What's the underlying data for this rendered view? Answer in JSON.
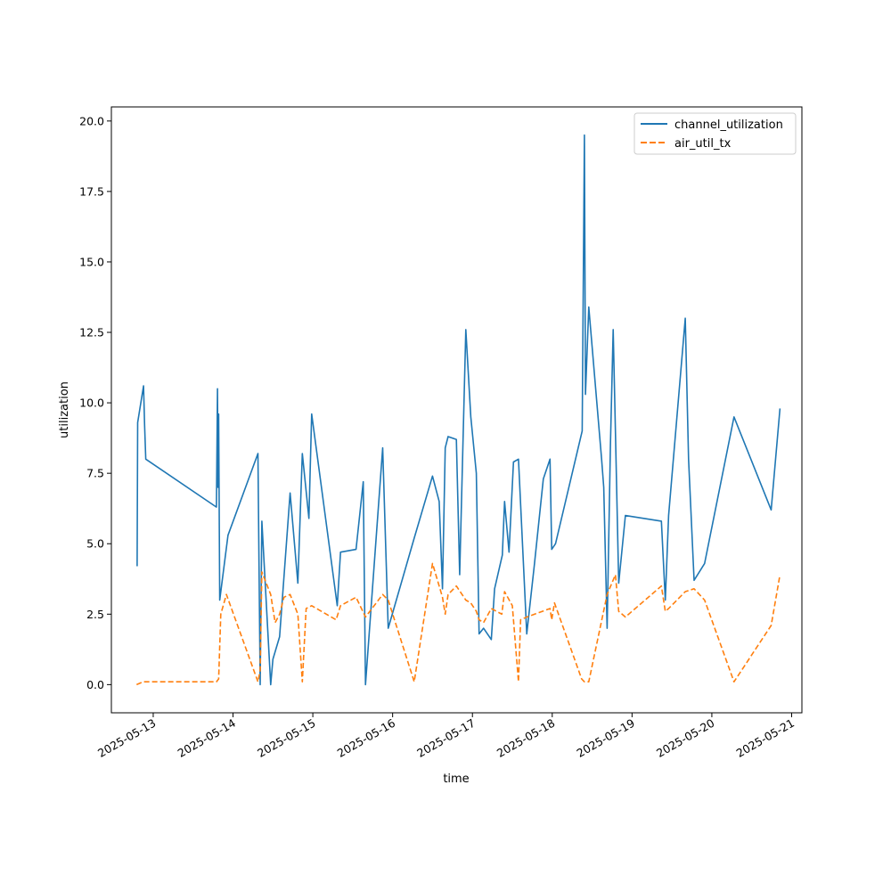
{
  "chart_data": {
    "type": "line",
    "title": "",
    "xlabel": "time",
    "ylabel": "utilization",
    "xlim": [
      "2025-05-12T11:25",
      "2025-05-21T03:05"
    ],
    "ylim": [
      -1.0,
      20.5
    ],
    "x_ticks": [
      "2025-05-13",
      "2025-05-14",
      "2025-05-15",
      "2025-05-16",
      "2025-05-17",
      "2025-05-18",
      "2025-05-19",
      "2025-05-20",
      "2025-05-21"
    ],
    "y_ticks": [
      "0.0",
      "2.5",
      "5.0",
      "7.5",
      "10.0",
      "12.5",
      "15.0",
      "17.5",
      "20.0"
    ],
    "grid": false,
    "legend": "top-right",
    "series": [
      {
        "name": "channel_utilization",
        "color": "#1f77b4",
        "style": "solid",
        "points": [
          [
            "2025-05-12T19:10",
            4.2
          ],
          [
            "2025-05-12T19:20",
            9.3
          ],
          [
            "2025-05-12T21:05",
            10.6
          ],
          [
            "2025-05-12T21:25",
            9.2
          ],
          [
            "2025-05-12T21:45",
            8.0
          ],
          [
            "2025-05-13T19:00",
            6.3
          ],
          [
            "2025-05-13T19:20",
            10.5
          ],
          [
            "2025-05-13T19:30",
            7.0
          ],
          [
            "2025-05-13T19:40",
            9.6
          ],
          [
            "2025-05-13T20:00",
            3.0
          ],
          [
            "2025-05-13T22:30",
            5.3
          ],
          [
            "2025-05-14T07:30",
            8.2
          ],
          [
            "2025-05-14T08:10",
            0.0
          ],
          [
            "2025-05-14T08:40",
            5.8
          ],
          [
            "2025-05-14T11:20",
            0.0
          ],
          [
            "2025-05-14T12:00",
            0.9
          ],
          [
            "2025-05-14T14:00",
            1.7
          ],
          [
            "2025-05-14T17:10",
            6.8
          ],
          [
            "2025-05-14T19:30",
            3.6
          ],
          [
            "2025-05-14T20:50",
            8.2
          ],
          [
            "2025-05-14T22:50",
            5.9
          ],
          [
            "2025-05-14T23:40",
            9.6
          ],
          [
            "2025-05-15T07:20",
            2.8
          ],
          [
            "2025-05-15T08:20",
            4.7
          ],
          [
            "2025-05-15T13:00",
            4.8
          ],
          [
            "2025-05-15T15:10",
            7.2
          ],
          [
            "2025-05-15T15:50",
            0.0
          ],
          [
            "2025-05-15T21:00",
            8.4
          ],
          [
            "2025-05-15T22:40",
            2.0
          ],
          [
            "2025-05-16T06:30",
            5.2
          ],
          [
            "2025-05-16T12:00",
            7.4
          ],
          [
            "2025-05-16T14:00",
            6.5
          ],
          [
            "2025-05-16T15:00",
            3.4
          ],
          [
            "2025-05-16T15:50",
            8.4
          ],
          [
            "2025-05-16T16:40",
            8.8
          ],
          [
            "2025-05-16T19:10",
            8.7
          ],
          [
            "2025-05-16T20:10",
            3.9
          ],
          [
            "2025-05-16T22:00",
            12.6
          ],
          [
            "2025-05-16T23:30",
            9.5
          ],
          [
            "2025-05-17T01:10",
            7.5
          ],
          [
            "2025-05-17T02:00",
            1.8
          ],
          [
            "2025-05-17T03:20",
            2.0
          ],
          [
            "2025-05-17T05:40",
            1.6
          ],
          [
            "2025-05-17T06:40",
            3.4
          ],
          [
            "2025-05-17T09:00",
            4.6
          ],
          [
            "2025-05-17T09:40",
            6.5
          ],
          [
            "2025-05-17T11:00",
            4.7
          ],
          [
            "2025-05-17T12:20",
            7.9
          ],
          [
            "2025-05-17T13:50",
            8.0
          ],
          [
            "2025-05-17T16:20",
            1.8
          ],
          [
            "2025-05-17T18:40",
            4.3
          ],
          [
            "2025-05-17T21:20",
            7.3
          ],
          [
            "2025-05-17T23:20",
            8.0
          ],
          [
            "2025-05-17T23:50",
            4.8
          ],
          [
            "2025-05-18T01:00",
            5.0
          ],
          [
            "2025-05-18T09:00",
            9.0
          ],
          [
            "2025-05-18T09:40",
            19.5
          ],
          [
            "2025-05-18T10:00",
            10.3
          ],
          [
            "2025-05-18T11:00",
            13.4
          ],
          [
            "2025-05-18T14:50",
            8.0
          ],
          [
            "2025-05-18T15:30",
            7.0
          ],
          [
            "2025-05-18T16:30",
            2.0
          ],
          [
            "2025-05-18T17:30",
            8.5
          ],
          [
            "2025-05-18T18:20",
            12.6
          ],
          [
            "2025-05-18T19:00",
            9.0
          ],
          [
            "2025-05-18T20:00",
            3.6
          ],
          [
            "2025-05-18T22:00",
            6.0
          ],
          [
            "2025-05-19T08:50",
            5.8
          ],
          [
            "2025-05-19T10:00",
            3.0
          ],
          [
            "2025-05-19T11:00",
            6.0
          ],
          [
            "2025-05-19T16:00",
            13.0
          ],
          [
            "2025-05-19T17:00",
            8.0
          ],
          [
            "2025-05-19T18:40",
            3.7
          ],
          [
            "2025-05-19T21:50",
            4.3
          ],
          [
            "2025-05-20T06:40",
            9.5
          ],
          [
            "2025-05-20T17:50",
            6.2
          ],
          [
            "2025-05-20T20:30",
            9.8
          ]
        ]
      },
      {
        "name": "air_util_tx",
        "color": "#ff7f0e",
        "style": "dashed",
        "points": [
          [
            "2025-05-12T19:00",
            0.0
          ],
          [
            "2025-05-12T21:00",
            0.1
          ],
          [
            "2025-05-13T19:00",
            0.1
          ],
          [
            "2025-05-13T19:40",
            0.2
          ],
          [
            "2025-05-13T20:20",
            2.5
          ],
          [
            "2025-05-13T22:00",
            3.2
          ],
          [
            "2025-05-14T07:30",
            0.1
          ],
          [
            "2025-05-14T08:10",
            0.5
          ],
          [
            "2025-05-14T08:40",
            4.0
          ],
          [
            "2025-05-14T11:20",
            3.2
          ],
          [
            "2025-05-14T12:40",
            2.2
          ],
          [
            "2025-05-14T14:00",
            2.5
          ],
          [
            "2025-05-14T15:20",
            3.1
          ],
          [
            "2025-05-14T17:10",
            3.2
          ],
          [
            "2025-05-14T19:30",
            2.5
          ],
          [
            "2025-05-14T20:50",
            0.1
          ],
          [
            "2025-05-14T22:00",
            2.7
          ],
          [
            "2025-05-14T23:40",
            2.8
          ],
          [
            "2025-05-15T07:00",
            2.3
          ],
          [
            "2025-05-15T08:20",
            2.8
          ],
          [
            "2025-05-15T13:00",
            3.1
          ],
          [
            "2025-05-15T15:50",
            2.4
          ],
          [
            "2025-05-15T21:00",
            3.2
          ],
          [
            "2025-05-15T22:40",
            3.0
          ],
          [
            "2025-05-16T06:30",
            0.1
          ],
          [
            "2025-05-16T12:00",
            4.3
          ],
          [
            "2025-05-16T14:00",
            3.5
          ],
          [
            "2025-05-16T15:00",
            3.1
          ],
          [
            "2025-05-16T15:50",
            2.5
          ],
          [
            "2025-05-16T16:40",
            3.2
          ],
          [
            "2025-05-16T19:10",
            3.5
          ],
          [
            "2025-05-16T22:00",
            3.0
          ],
          [
            "2025-05-16T23:30",
            2.9
          ],
          [
            "2025-05-17T01:10",
            2.6
          ],
          [
            "2025-05-17T02:00",
            2.3
          ],
          [
            "2025-05-17T03:20",
            2.2
          ],
          [
            "2025-05-17T05:40",
            2.7
          ],
          [
            "2025-05-17T08:50",
            2.5
          ],
          [
            "2025-05-17T09:40",
            3.3
          ],
          [
            "2025-05-17T12:00",
            2.8
          ],
          [
            "2025-05-17T13:50",
            0.1
          ],
          [
            "2025-05-17T14:30",
            2.3
          ],
          [
            "2025-05-17T16:20",
            2.4
          ],
          [
            "2025-05-17T23:20",
            2.7
          ],
          [
            "2025-05-17T23:50",
            2.3
          ],
          [
            "2025-05-18T00:40",
            2.9
          ],
          [
            "2025-05-18T08:50",
            0.2
          ],
          [
            "2025-05-18T09:40",
            0.1
          ],
          [
            "2025-05-18T11:00",
            0.1
          ],
          [
            "2025-05-18T16:30",
            3.2
          ],
          [
            "2025-05-18T19:00",
            3.9
          ],
          [
            "2025-05-18T20:00",
            2.6
          ],
          [
            "2025-05-18T22:00",
            2.4
          ],
          [
            "2025-05-19T08:50",
            3.5
          ],
          [
            "2025-05-19T10:00",
            2.6
          ],
          [
            "2025-05-19T11:00",
            2.7
          ],
          [
            "2025-05-19T16:00",
            3.3
          ],
          [
            "2025-05-19T18:40",
            3.4
          ],
          [
            "2025-05-19T21:50",
            3.0
          ],
          [
            "2025-05-20T06:40",
            0.1
          ],
          [
            "2025-05-20T17:50",
            2.1
          ],
          [
            "2025-05-20T20:30",
            3.9
          ]
        ]
      }
    ]
  }
}
